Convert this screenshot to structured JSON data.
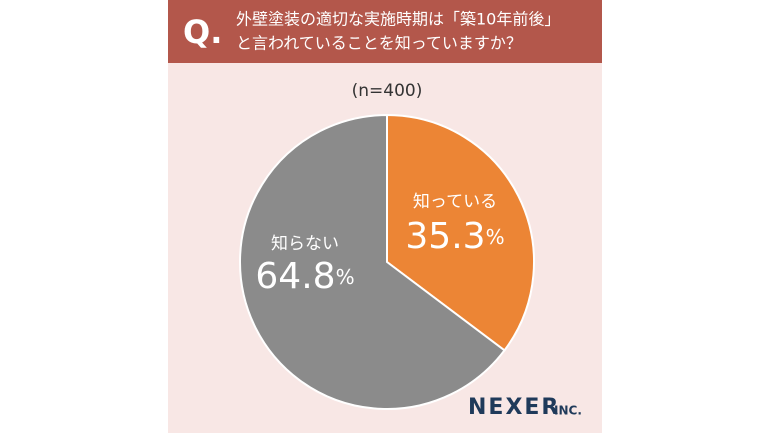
{
  "chart_data": {
    "type": "pie",
    "question_mark": "Q.",
    "title": [
      "外壁塗装の適切な実施時期は「築10年前後」",
      "と言われていることを知っていますか？"
    ],
    "subtitle": "(n=400)",
    "categories": [
      "知っている",
      "知らない"
    ],
    "values": [
      35.3,
      64.8
    ],
    "value_labels": [
      "35.3%",
      "64.8%"
    ],
    "colors": [
      "#ec8535",
      "#8b8b8b"
    ],
    "logo": "NEXER",
    "logo_suffix": "INC."
  }
}
